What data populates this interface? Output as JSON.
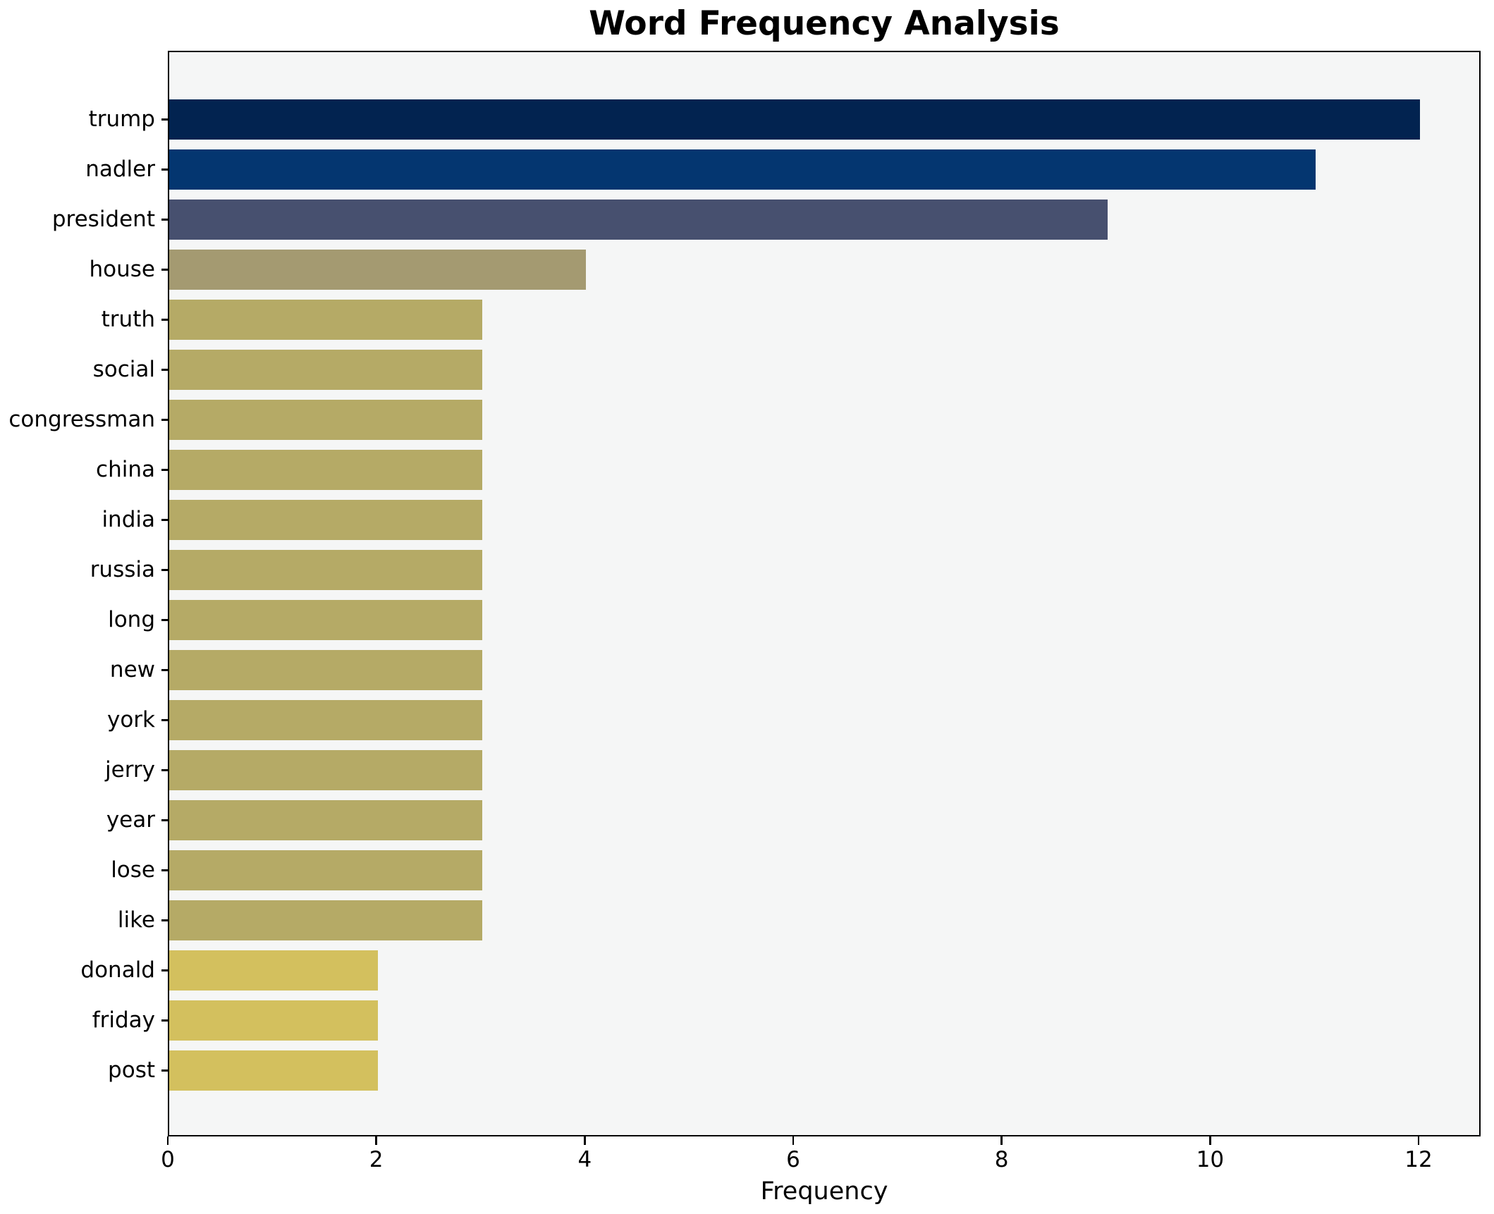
{
  "chart_data": {
    "type": "bar",
    "orientation": "horizontal",
    "title": "Word Frequency Analysis",
    "xlabel": "Frequency",
    "ylabel": "",
    "categories": [
      "trump",
      "nadler",
      "president",
      "house",
      "truth",
      "social",
      "congressman",
      "china",
      "india",
      "russia",
      "long",
      "new",
      "york",
      "jerry",
      "year",
      "lose",
      "like",
      "donald",
      "friday",
      "post"
    ],
    "values": [
      12,
      11,
      9,
      4,
      3,
      3,
      3,
      3,
      3,
      3,
      3,
      3,
      3,
      3,
      3,
      3,
      3,
      2,
      2,
      2
    ],
    "bar_colors": [
      "#022350",
      "#043670",
      "#47506f",
      "#a49a71",
      "#b5aa66",
      "#b5aa66",
      "#b5aa66",
      "#b5aa66",
      "#b5aa66",
      "#b5aa66",
      "#b5aa66",
      "#b5aa66",
      "#b5aa66",
      "#b5aa66",
      "#b5aa66",
      "#b5aa66",
      "#b5aa66",
      "#d3c05e",
      "#d3c05e",
      "#d3c05e"
    ],
    "xticks": [
      0,
      2,
      4,
      6,
      8,
      10,
      12
    ],
    "xlim": [
      0,
      12.6
    ],
    "grid": false,
    "legend": null,
    "plot_background": "#f5f6f6",
    "figure_background": "#ffffff",
    "spine_color": "#000000",
    "text_color": "#000000"
  }
}
